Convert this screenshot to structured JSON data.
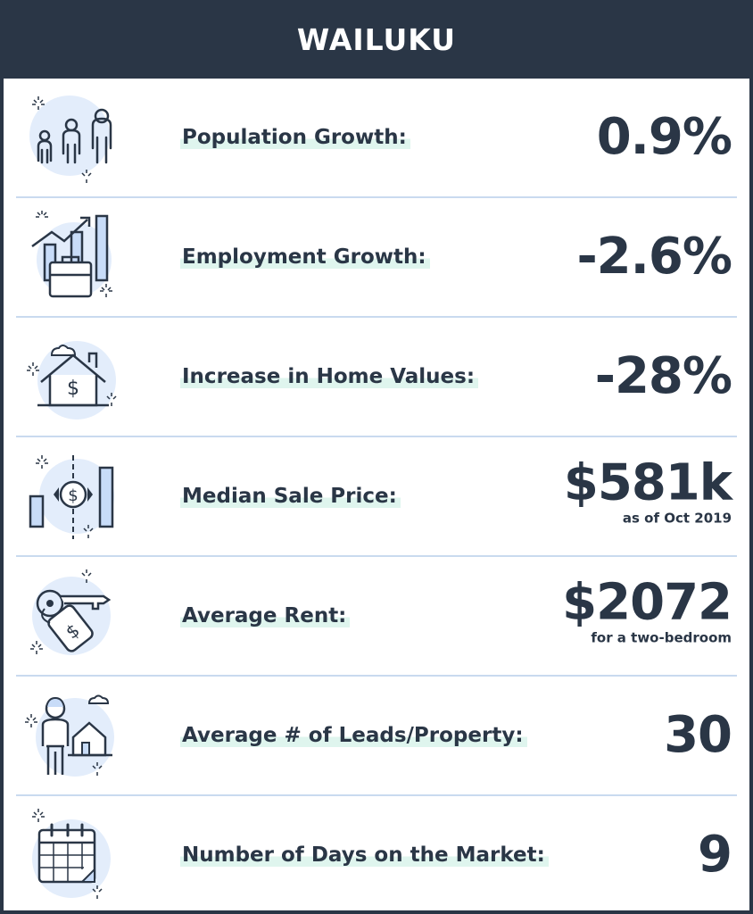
{
  "title": "WAILUKU",
  "colors": {
    "header_bg": "#2a3646",
    "text": "#2a3646",
    "divider": "#c9daef",
    "icon_circle": "#e3edfb",
    "highlight": "#dff5ee"
  },
  "stats": [
    {
      "label": "Population Growth:",
      "value": "0.9%",
      "icon": "people-icon"
    },
    {
      "label": "Employment Growth:",
      "value": "-2.6%",
      "icon": "briefcase-chart-icon"
    },
    {
      "label": "Increase in Home Values:",
      "value": "-28%",
      "icon": "house-dollar-icon"
    },
    {
      "label": "Median Sale Price:",
      "value": "$581k",
      "note": "as of Oct 2019",
      "icon": "price-chart-icon"
    },
    {
      "label": "Average Rent:",
      "value": "$2072",
      "note": "for a two-bedroom",
      "icon": "key-tag-icon"
    },
    {
      "label": "Average # of Leads/Property:",
      "value": "30",
      "icon": "person-house-icon"
    },
    {
      "label": "Number of Days on the Market:",
      "value": "9",
      "icon": "calendar-icon"
    }
  ]
}
